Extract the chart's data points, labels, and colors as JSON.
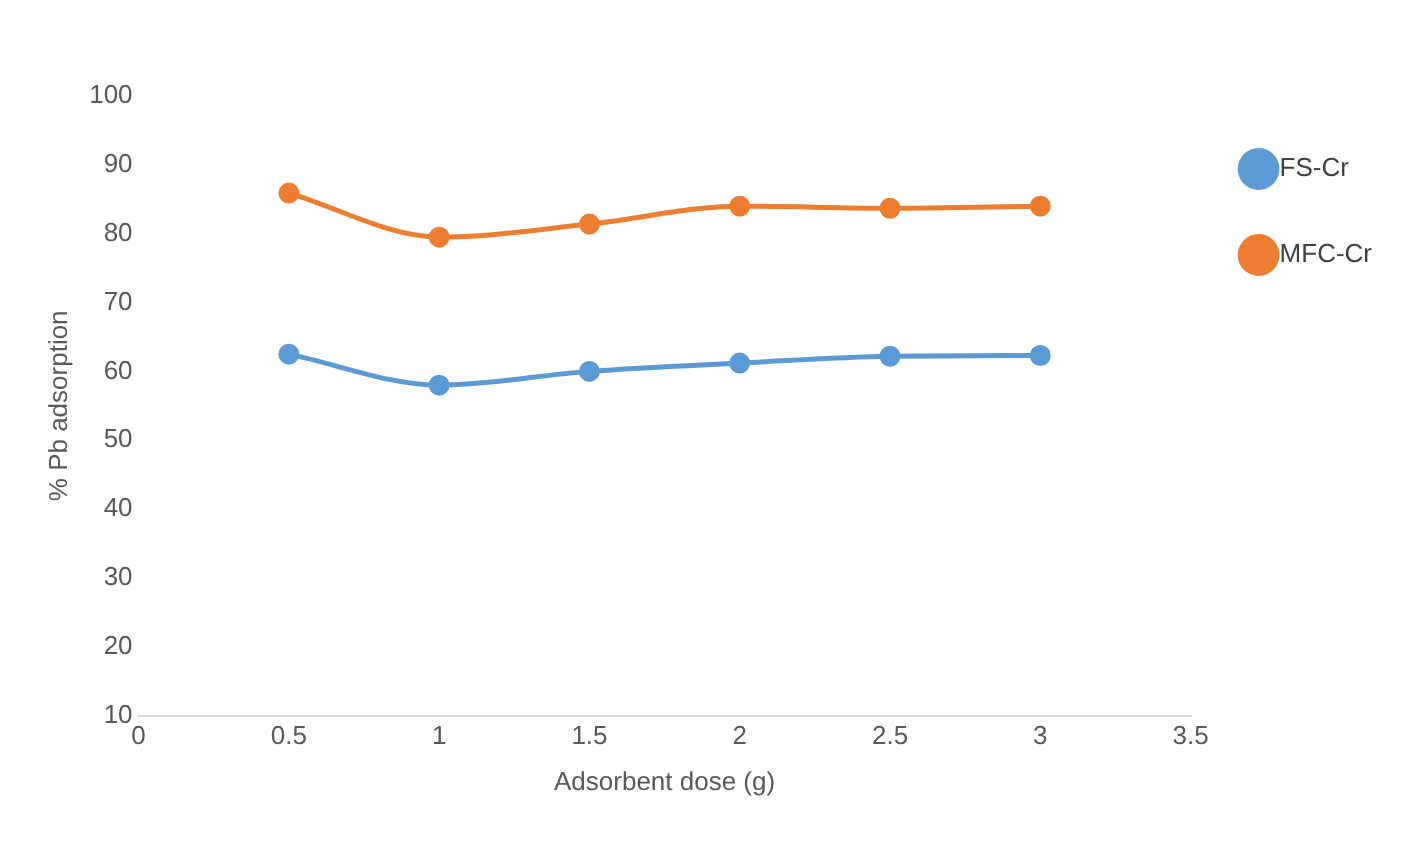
{
  "chart_data": {
    "type": "line",
    "xlabel": "Adsorbent dose (g)",
    "ylabel": "% Pb adsorption",
    "x": [
      0.5,
      1,
      1.5,
      2,
      2.5,
      3
    ],
    "series": [
      {
        "name": "FS-Cr",
        "color": "#5b9bd5",
        "values": [
          62.5,
          58,
          60,
          61.2,
          62.2,
          62.3
        ]
      },
      {
        "name": "MFC-Cr",
        "color": "#ed7d31",
        "values": [
          85.9,
          79.5,
          81.4,
          84,
          83.7,
          84
        ]
      }
    ],
    "xlim": [
      0,
      3.5
    ],
    "xticks": [
      0,
      0.5,
      1,
      1.5,
      2,
      2.5,
      3,
      3.5
    ],
    "ylim": [
      10,
      100
    ],
    "yticks": [
      10,
      20,
      30,
      40,
      50,
      60,
      70,
      80,
      90,
      100
    ],
    "grid": false,
    "legend": "top right",
    "marker": "circle",
    "line_style": "solid"
  }
}
